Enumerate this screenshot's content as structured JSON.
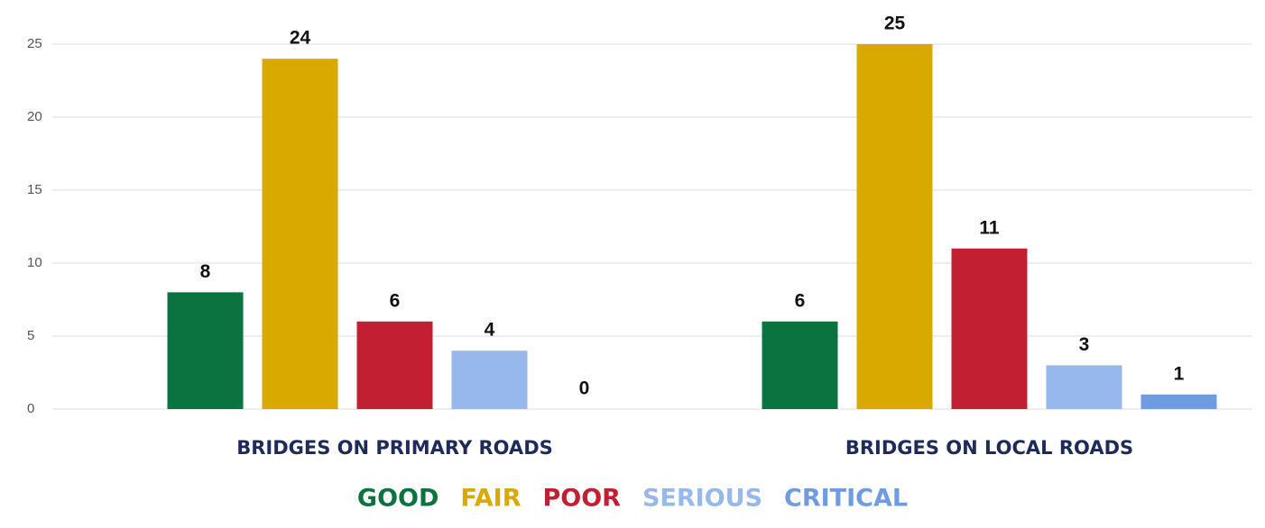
{
  "chart_data": {
    "type": "bar",
    "categories": [
      "BRIDGES ON PRIMARY ROADS",
      "BRIDGES ON LOCAL ROADS"
    ],
    "series": [
      {
        "name": "GOOD",
        "color": "#0b7340",
        "values": [
          8,
          6
        ]
      },
      {
        "name": "FAIR",
        "color": "#d9a900",
        "values": [
          24,
          25
        ]
      },
      {
        "name": "POOR",
        "color": "#c31f33",
        "values": [
          6,
          11
        ]
      },
      {
        "name": "SERIOUS",
        "color": "#97b8ea",
        "values": [
          4,
          3
        ]
      },
      {
        "name": "CRITICAL",
        "color": "#6f9be0",
        "values": [
          0,
          1
        ]
      }
    ],
    "ylim": [
      0,
      25
    ],
    "yticks": [
      0,
      5,
      10,
      15,
      20,
      25
    ],
    "grid": true,
    "legend": "bottom"
  }
}
